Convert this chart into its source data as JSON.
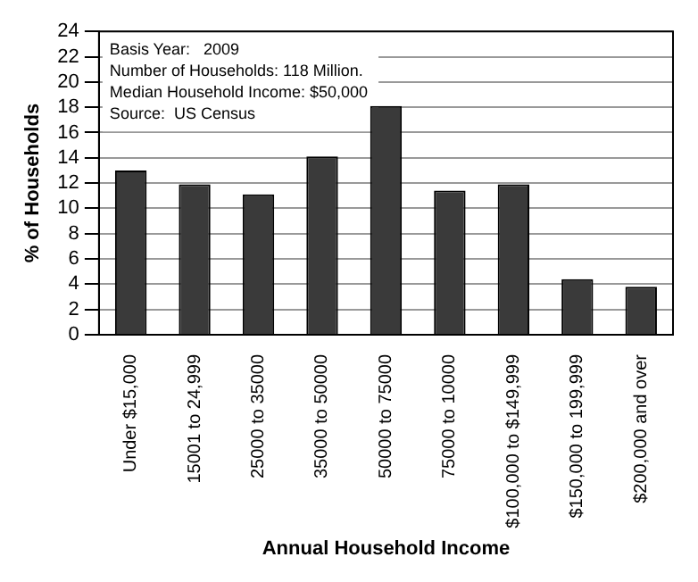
{
  "chart_data": {
    "type": "bar",
    "xlabel": "Annual Household Income",
    "ylabel": "% of Households",
    "categories": [
      "Under $15,000",
      "15001 to 24,999",
      "25000 to 35000",
      "35000 to 50000",
      "50000 to 75000",
      "75000 to 10000",
      "$100,000 to $149,999",
      "$150,000 to 199,999",
      "$200,000 and over"
    ],
    "values": [
      13.0,
      11.9,
      11.1,
      14.1,
      18.1,
      11.4,
      11.9,
      4.4,
      3.8
    ],
    "color": "#3a3a3a",
    "ylim": [
      0,
      24
    ],
    "yticks": [
      0,
      2,
      4,
      6,
      8,
      10,
      12,
      14,
      16,
      18,
      20,
      22,
      24
    ],
    "grid": "y",
    "annotations": [
      "Basis Year:   2009",
      "Number of Households: 118 Million.",
      "Median Household Income: $50,000",
      "Source:  US Census"
    ]
  }
}
